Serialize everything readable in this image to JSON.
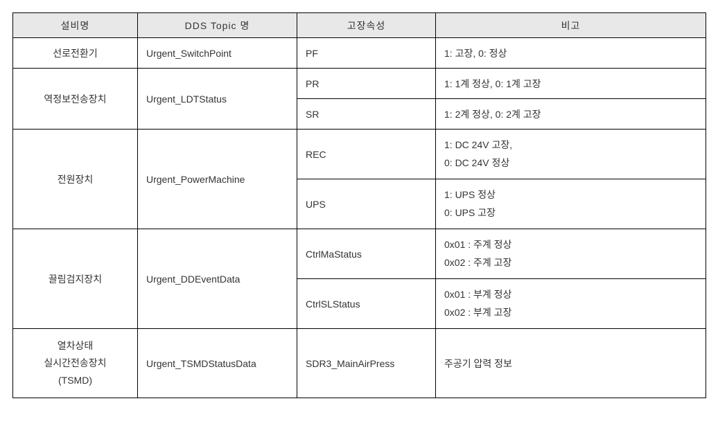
{
  "table": {
    "headers": {
      "equip": "설비명",
      "topic": "DDS   Topic 명",
      "attr": "고장속성",
      "note": "비고"
    },
    "rows": {
      "r1": {
        "equip": "선로전환기",
        "topic": "Urgent_SwitchPoint",
        "attr": "PF",
        "note": "1: 고장,   0: 정상"
      },
      "r2": {
        "equip": "역정보전송장치",
        "topic": "Urgent_LDTStatus",
        "attr1": "PR",
        "note1": "1: 1계 정상,   0: 1계 고장",
        "attr2": "SR",
        "note2": "1: 2계 정상,   0: 2계 고장"
      },
      "r3": {
        "equip": "전원장치",
        "topic": "Urgent_PowerMachine",
        "attr1": "REC",
        "note1a": "1: DC 24V 고장,",
        "note1b": "0: DC 24V 정상",
        "attr2": "UPS",
        "note2a": "1: UPS 정상",
        "note2b": "0: UPS 고장"
      },
      "r4": {
        "equip": "끌림검지장치",
        "topic": "Urgent_DDEventData",
        "attr1": "CtrlMaStatus",
        "note1a": "0x01 : 주계 정상",
        "note1b": "0x02 : 주계 고장",
        "attr2": "CtrlSLStatus",
        "note2a": "0x01 : 부계 정상",
        "note2b": "0x02 : 부계 고장"
      },
      "r5": {
        "equip_a": "열차상태",
        "equip_b": "실시간전송장치",
        "equip_c": "(TSMD)",
        "topic": "Urgent_TSMDStatusData",
        "attr": "SDR3_MainAirPress",
        "note": "주공기 압력 정보"
      }
    }
  },
  "style": {
    "header_bg": "#e8e8e8",
    "border_color": "#000000",
    "text_color": "#333333",
    "font_size_pt": 14
  }
}
